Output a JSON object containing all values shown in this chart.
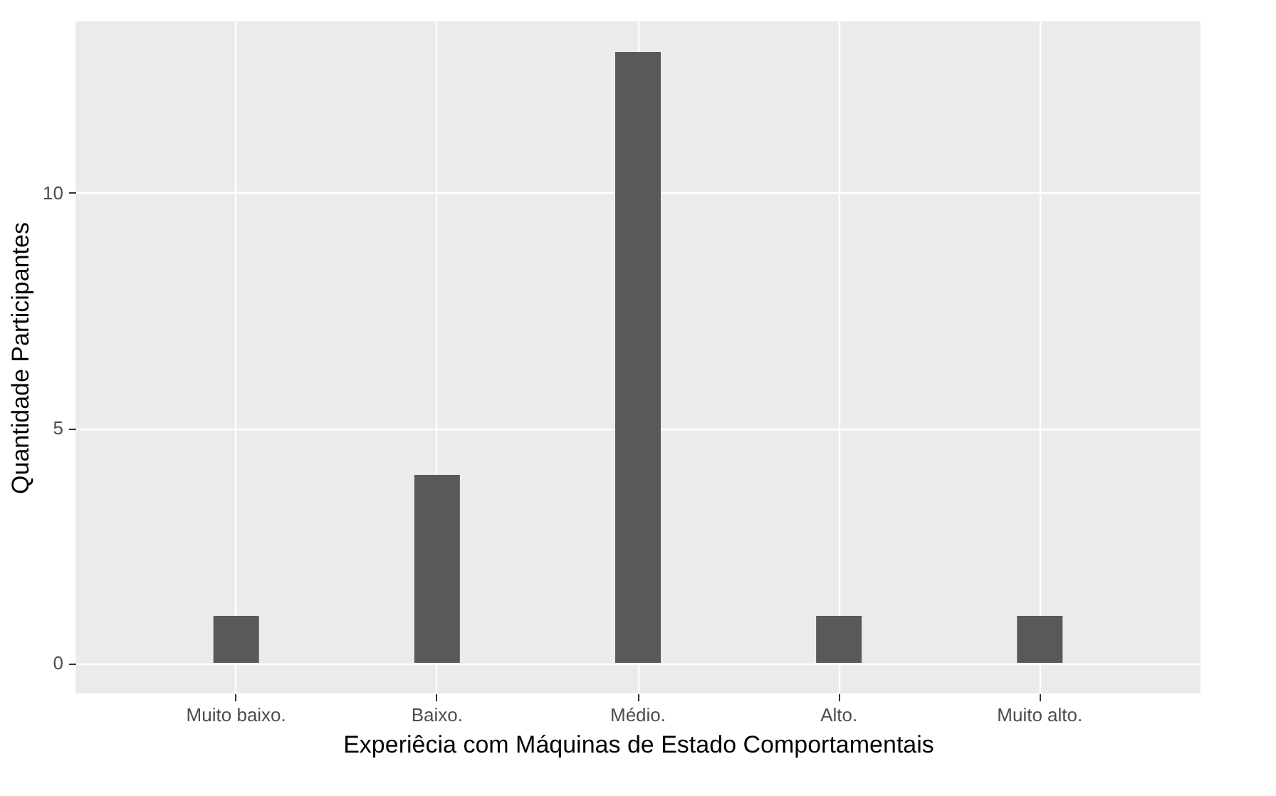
{
  "chart_data": {
    "type": "bar",
    "xlabel": "Experiêcia com Máquinas de Estado Comportamentais",
    "ylabel": "Quantidade Participantes",
    "categories": [
      "Muito baixo.",
      "Baixo.",
      "Médio.",
      "Alto.",
      "Muito alto."
    ],
    "values": [
      1,
      4,
      13,
      1,
      1
    ],
    "color": "#595959",
    "ylim": [
      -0.65,
      13.65
    ],
    "yticks": [
      0,
      5,
      10
    ],
    "grid": true
  }
}
